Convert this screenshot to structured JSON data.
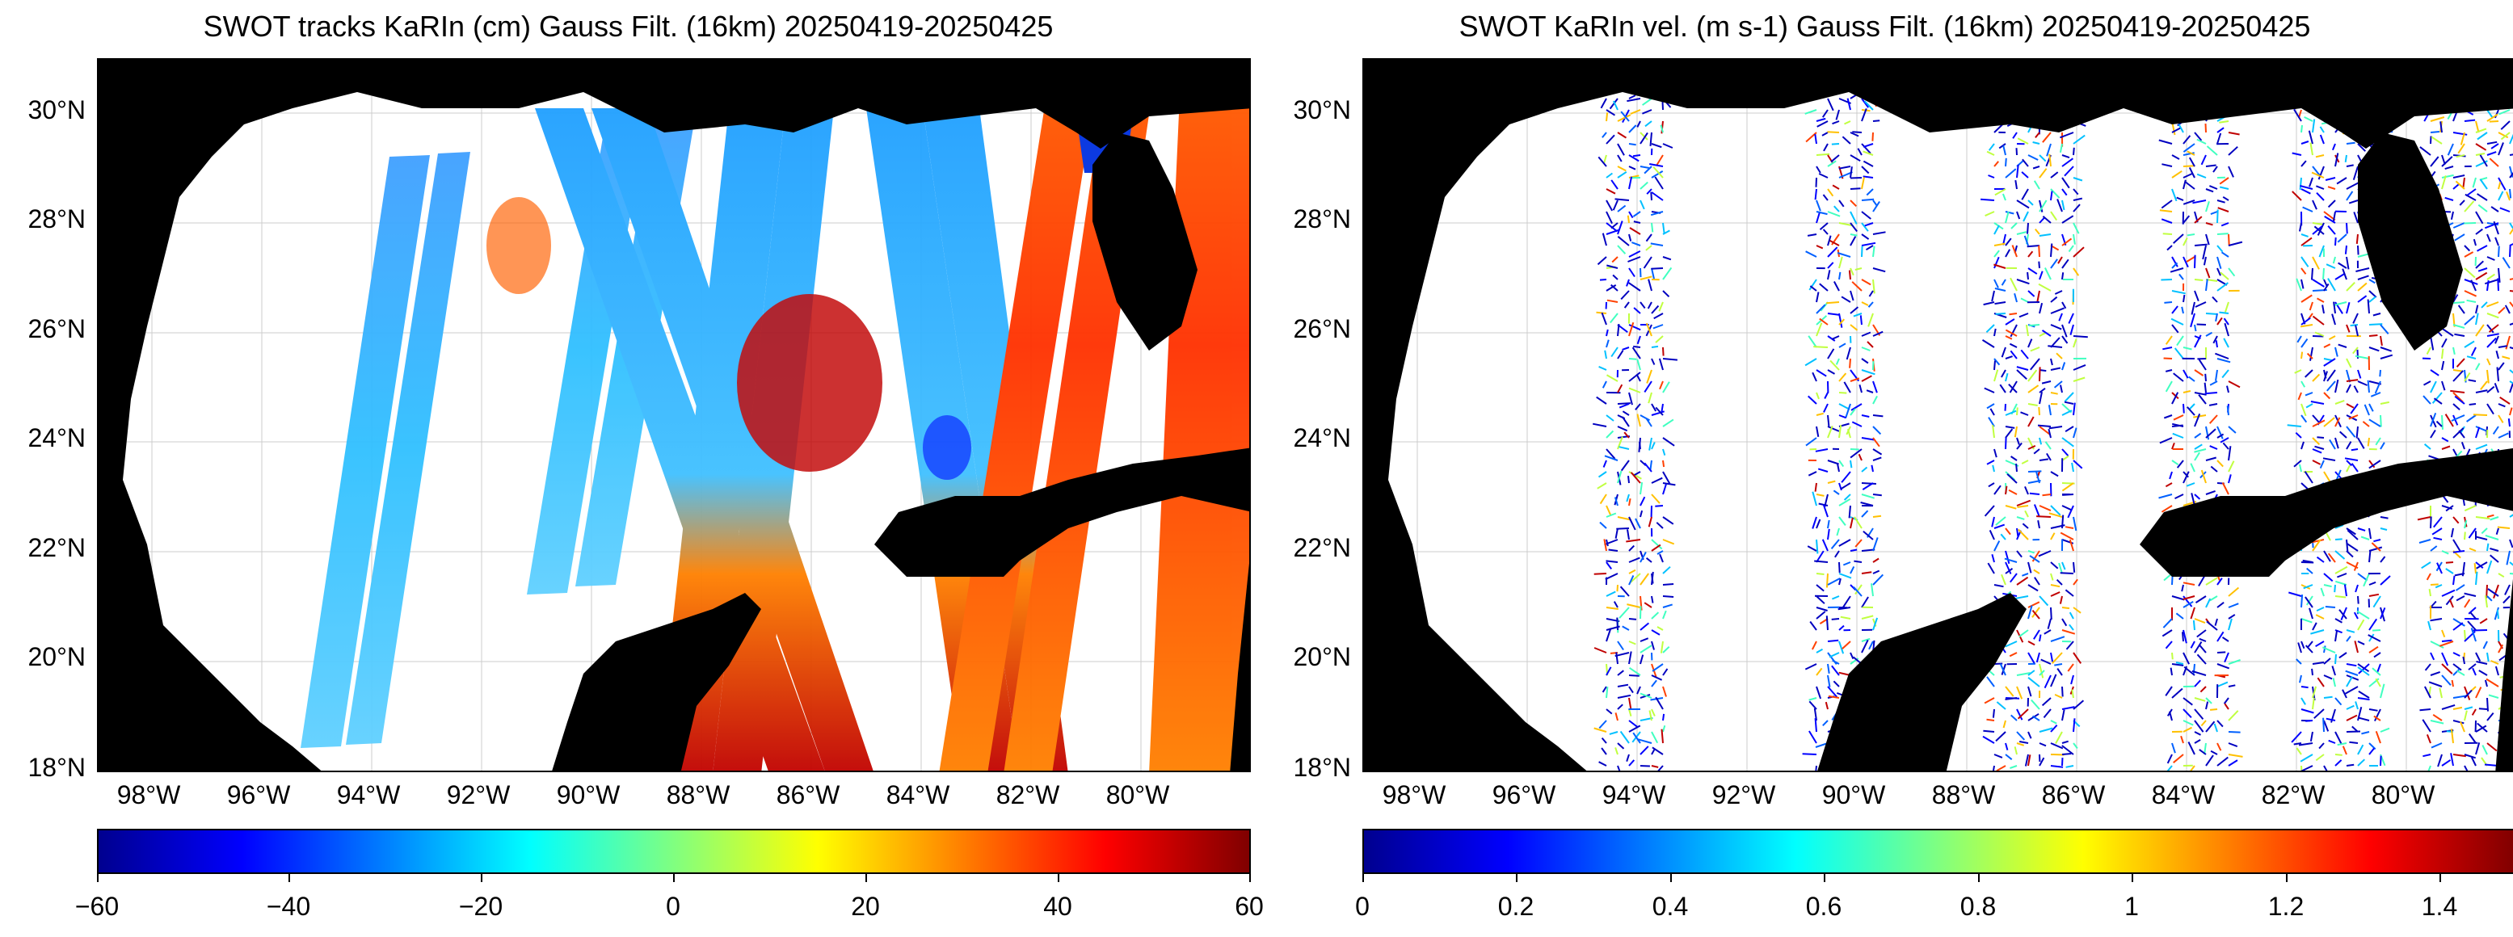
{
  "left_panel": {
    "title": "SWOT tracks KaRIn (cm) Gauss Filt. (16km) 20250419-20250425",
    "colorbar_ticks": [
      "−60",
      "−40",
      "−20",
      "0",
      "20",
      "40",
      "60"
    ]
  },
  "right_panel": {
    "title": "SWOT KaRIn vel. (m s-1) Gauss Filt. (16km) 20250419-20250425",
    "colorbar_ticks": [
      "0",
      "0.2",
      "0.4",
      "0.6",
      "0.8",
      "1",
      "1.2",
      "1.4"
    ]
  },
  "lat_labels": [
    "30°N",
    "28°N",
    "26°N",
    "24°N",
    "22°N",
    "20°N",
    "18°N"
  ],
  "lon_labels": [
    "98°W",
    "96°W",
    "94°W",
    "92°W",
    "90°W",
    "88°W",
    "86°W",
    "84°W",
    "82°W",
    "80°W"
  ],
  "colormap": "jet",
  "land_color": "#000000",
  "ocean_color": "#ffffff",
  "grid": true
}
